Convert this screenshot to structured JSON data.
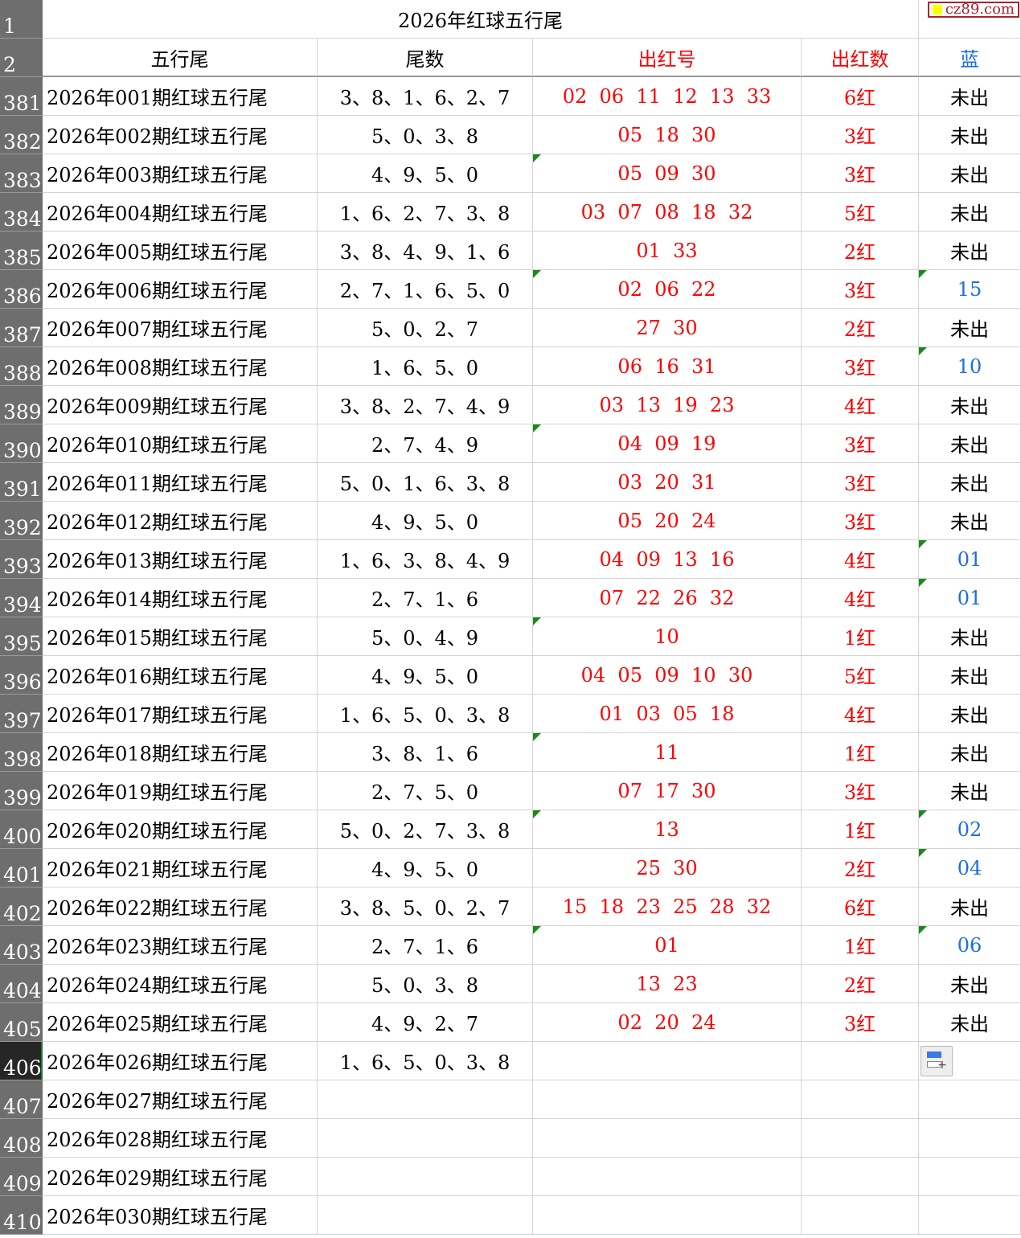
{
  "title": "2026年红球五行尾",
  "watermark": "cz89.com",
  "header_row_numbers": [
    "1",
    "2"
  ],
  "headers": [
    "五行尾",
    "尾数",
    "出红号",
    "出红数",
    "蓝"
  ],
  "colors": {
    "red": "#ff0000",
    "blue": "#1a6fe0",
    "header_bg": "#6e6e6e",
    "selected_row_bg": "#262626"
  },
  "selected_row": "406",
  "rows": [
    {
      "n": "381",
      "a": "2026年001期红球五行尾",
      "b": "3、8、1、6、2、7",
      "c": "02  06  11  12  13  33",
      "d": "6红",
      "e": "未出"
    },
    {
      "n": "382",
      "a": "2026年002期红球五行尾",
      "b": "5、0、3、8",
      "c": "05  18  30",
      "d": "3红",
      "e": "未出"
    },
    {
      "n": "383",
      "a": "2026年003期红球五行尾",
      "b": "4、9、5、0",
      "c": "05  09  30",
      "d": "3红",
      "e": "未出",
      "tc": true
    },
    {
      "n": "384",
      "a": "2026年004期红球五行尾",
      "b": "1、6、2、7、3、8",
      "c": "03  07  08  18  32",
      "d": "5红",
      "e": "未出"
    },
    {
      "n": "385",
      "a": "2026年005期红球五行尾",
      "b": "3、8、4、9、1、6",
      "c": "01  33",
      "d": "2红",
      "e": "未出"
    },
    {
      "n": "386",
      "a": "2026年006期红球五行尾",
      "b": "2、7、1、6、5、0",
      "c": "02  06  22",
      "d": "3红",
      "e": "15",
      "tc": true,
      "te": true
    },
    {
      "n": "387",
      "a": "2026年007期红球五行尾",
      "b": "5、0、2、7",
      "c": "27  30",
      "d": "2红",
      "e": "未出"
    },
    {
      "n": "388",
      "a": "2026年008期红球五行尾",
      "b": "1、6、5、0",
      "c": "06  16  31",
      "d": "3红",
      "e": "10",
      "te": true
    },
    {
      "n": "389",
      "a": "2026年009期红球五行尾",
      "b": "3、8、2、7、4、9",
      "c": "03  13  19  23",
      "d": "4红",
      "e": "未出"
    },
    {
      "n": "390",
      "a": "2026年010期红球五行尾",
      "b": "2、7、4、9",
      "c": "04  09  19",
      "d": "3红",
      "e": "未出",
      "tc": true
    },
    {
      "n": "391",
      "a": "2026年011期红球五行尾",
      "b": "5、0、1、6、3、8",
      "c": "03  20  31",
      "d": "3红",
      "e": "未出"
    },
    {
      "n": "392",
      "a": "2026年012期红球五行尾",
      "b": "4、9、5、0",
      "c": "05  20  24",
      "d": "3红",
      "e": "未出"
    },
    {
      "n": "393",
      "a": "2026年013期红球五行尾",
      "b": "1、6、3、8、4、9",
      "c": "04  09  13  16",
      "d": "4红",
      "e": "01",
      "te": true
    },
    {
      "n": "394",
      "a": "2026年014期红球五行尾",
      "b": "2、7、1、6",
      "c": "07  22  26  32",
      "d": "4红",
      "e": "01",
      "te": true
    },
    {
      "n": "395",
      "a": "2026年015期红球五行尾",
      "b": "5、0、4、9",
      "c": "10",
      "d": "1红",
      "e": "未出",
      "tc": true
    },
    {
      "n": "396",
      "a": "2026年016期红球五行尾",
      "b": "4、9、5、0",
      "c": "04  05  09  10  30",
      "d": "5红",
      "e": "未出"
    },
    {
      "n": "397",
      "a": "2026年017期红球五行尾",
      "b": "1、6、5、0、3、8",
      "c": "01  03  05  18",
      "d": "4红",
      "e": "未出"
    },
    {
      "n": "398",
      "a": "2026年018期红球五行尾",
      "b": "3、8、1、6",
      "c": "11",
      "d": "1红",
      "e": "未出",
      "tc": true
    },
    {
      "n": "399",
      "a": "2026年019期红球五行尾",
      "b": "2、7、5、0",
      "c": "07  17  30",
      "d": "3红",
      "e": "未出"
    },
    {
      "n": "400",
      "a": "2026年020期红球五行尾",
      "b": "5、0、2、7、3、8",
      "c": "13",
      "d": "1红",
      "e": "02",
      "tc": true,
      "te": true
    },
    {
      "n": "401",
      "a": "2026年021期红球五行尾",
      "b": "4、9、5、0",
      "c": "25  30",
      "d": "2红",
      "e": "04",
      "te": true
    },
    {
      "n": "402",
      "a": "2026年022期红球五行尾",
      "b": "3、8、5、0、2、7",
      "c": "15  18  23  25  28  32",
      "d": "6红",
      "e": "未出"
    },
    {
      "n": "403",
      "a": "2026年023期红球五行尾",
      "b": "2、7、1、6",
      "c": "01",
      "d": "1红",
      "e": "06",
      "tc": true,
      "te": true
    },
    {
      "n": "404",
      "a": "2026年024期红球五行尾",
      "b": "5、0、3、8",
      "c": "13  23",
      "d": "2红",
      "e": "未出"
    },
    {
      "n": "405",
      "a": "2026年025期红球五行尾",
      "b": "4、9、2、7",
      "c": "02  20  24",
      "d": "3红",
      "e": "未出"
    },
    {
      "n": "406",
      "a": "2026年026期红球五行尾",
      "b": "1、6、5、0、3、8",
      "c": "",
      "d": "",
      "e": ""
    },
    {
      "n": "407",
      "a": "2026年027期红球五行尾",
      "b": "",
      "c": "",
      "d": "",
      "e": ""
    },
    {
      "n": "408",
      "a": "2026年028期红球五行尾",
      "b": "",
      "c": "",
      "d": "",
      "e": ""
    },
    {
      "n": "409",
      "a": "2026年029期红球五行尾",
      "b": "",
      "c": "",
      "d": "",
      "e": ""
    },
    {
      "n": "410",
      "a": "2026年030期红球五行尾",
      "b": "",
      "c": "",
      "d": "",
      "e": ""
    }
  ]
}
